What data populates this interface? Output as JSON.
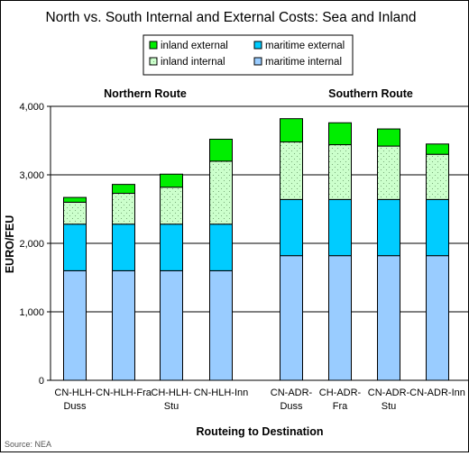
{
  "chart_data": {
    "type": "bar",
    "stacked": true,
    "title": "North vs. South Internal and External Costs: Sea and Inland",
    "xlabel": "Routeing to Destination",
    "ylabel": "EURO/FEU",
    "ylim": [
      0,
      4000
    ],
    "yticks": [
      "0",
      "1,000",
      "2,000",
      "3,000",
      "4,000"
    ],
    "ytick_values": [
      0,
      1000,
      2000,
      3000,
      4000
    ],
    "grid": true,
    "legend_position": "top",
    "groups": [
      "Northern Route",
      "Southern Route"
    ],
    "categories": [
      [
        "CN-HLH-",
        "Duss"
      ],
      [
        "CN-HLH-Fra"
      ],
      [
        "CH-HLH-",
        "Stu"
      ],
      [
        "CN-HLH-Inn"
      ],
      [
        "CN-ADR-",
        "Duss"
      ],
      [
        "CH-ADR-",
        "Fra"
      ],
      [
        "CN-ADR-",
        "Stu"
      ],
      [
        "CN-ADR-Inn"
      ]
    ],
    "category_group": [
      0,
      0,
      0,
      0,
      1,
      1,
      1,
      1
    ],
    "series": [
      {
        "name": "maritime internal",
        "color": "#99ccff",
        "pattern": "solid",
        "values": [
          1600,
          1600,
          1600,
          1600,
          1820,
          1820,
          1820,
          1820
        ]
      },
      {
        "name": "maritime external",
        "color": "#00ccff",
        "pattern": "solid",
        "values": [
          680,
          680,
          680,
          680,
          820,
          820,
          820,
          820
        ]
      },
      {
        "name": "inland internal",
        "color": "#ccffcc",
        "pattern": "dotted",
        "values": [
          320,
          450,
          540,
          920,
          840,
          800,
          780,
          660
        ]
      },
      {
        "name": "inland external",
        "color": "#00ee00",
        "pattern": "solid",
        "values": [
          70,
          130,
          190,
          320,
          340,
          320,
          250,
          150
        ]
      }
    ],
    "legend_order": [
      [
        "inland external",
        "maritime external"
      ],
      [
        "inland internal",
        "maritime internal"
      ]
    ],
    "source": "Source: NEA"
  }
}
